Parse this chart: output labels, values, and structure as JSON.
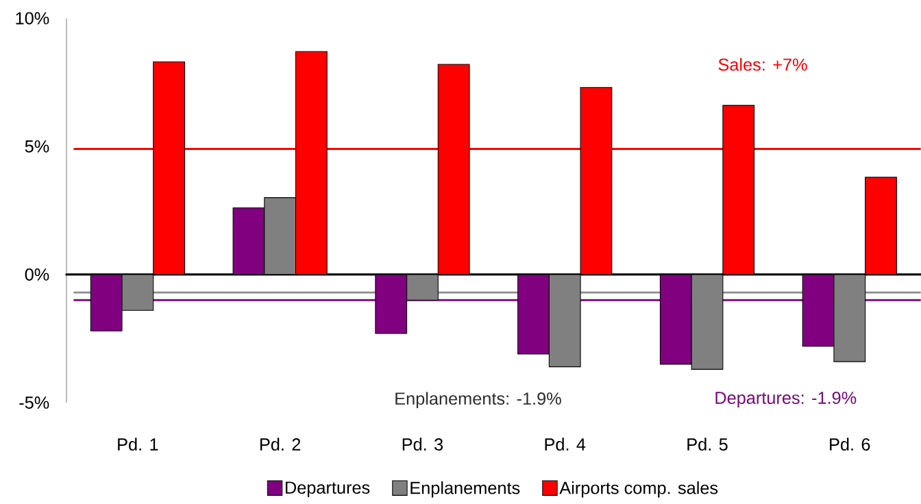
{
  "chart_data": {
    "type": "bar",
    "categories": [
      "Pd. 1",
      "Pd. 2",
      "Pd. 3",
      "Pd. 4",
      "Pd. 5",
      "Pd. 6"
    ],
    "series": [
      {
        "name": "Departures",
        "color": "#800080",
        "values": [
          -2.2,
          2.6,
          -2.3,
          -3.1,
          -3.5,
          -2.8
        ]
      },
      {
        "name": "Enplanements",
        "color": "#808080",
        "values": [
          -1.4,
          3.0,
          -1.0,
          -3.6,
          -3.7,
          -3.4
        ]
      },
      {
        "name": "Airports comp. sales",
        "color": "#ff0000",
        "values": [
          8.3,
          8.7,
          8.2,
          7.3,
          6.6,
          3.8
        ]
      }
    ],
    "ylim": [
      -5,
      10
    ],
    "yticks": [
      {
        "value": -5,
        "label": "-5%"
      },
      {
        "value": 0,
        "label": "0%"
      },
      {
        "value": 5,
        "label": "5%"
      },
      {
        "value": 10,
        "label": "10%"
      }
    ],
    "ref_lines": [
      {
        "axis": "y",
        "value": 4.9,
        "color": "#ff0000"
      },
      {
        "axis": "y",
        "value": -0.7,
        "color": "#8c8c8c"
      },
      {
        "axis": "y",
        "value": -1.0,
        "color": "#7a0a7a"
      }
    ],
    "annotations": [
      "Sales: +7%",
      "Enplanements: -1.9%",
      "Departures: -1.9%"
    ],
    "legend": "bottom"
  }
}
